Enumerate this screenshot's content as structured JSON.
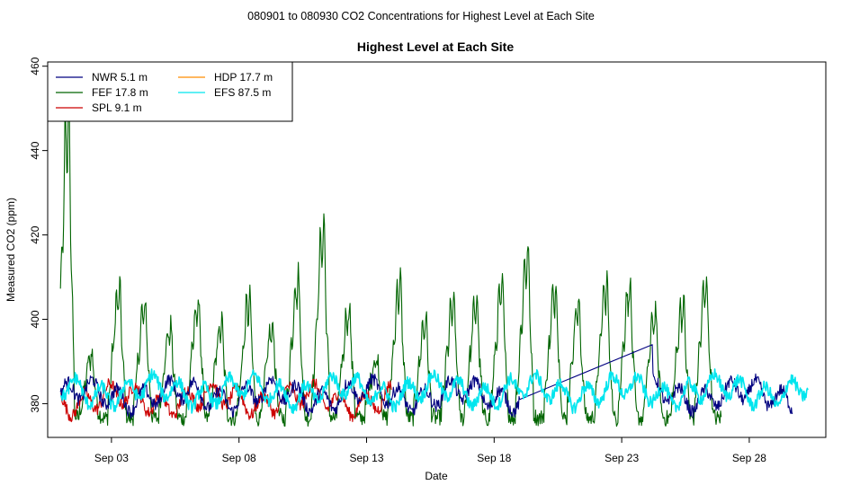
{
  "page_title": "080901  to  080930 CO2 Concentrations for Highest Level at Each Site",
  "chart_data": {
    "type": "line",
    "title": "Highest Level at Each Site",
    "xlabel": "Date",
    "ylabel": "Measured CO2 (ppm)",
    "xlim": [
      -0.5,
      30.0
    ],
    "ylim": [
      372,
      461
    ],
    "x_ticks": [
      {
        "value": 2,
        "label": "Sep 03"
      },
      {
        "value": 7,
        "label": "Sep 08"
      },
      {
        "value": 12,
        "label": "Sep 13"
      },
      {
        "value": 17,
        "label": "Sep 18"
      },
      {
        "value": 22,
        "label": "Sep 23"
      },
      {
        "value": 27,
        "label": "Sep 28"
      }
    ],
    "y_ticks": [
      380,
      400,
      420,
      440,
      460
    ],
    "x_units": "days since Sep 01",
    "series": [
      {
        "name": "NWR   5.1 m",
        "color": "#000080",
        "x_range": [
          0.0,
          28.7
        ],
        "peak_times": [],
        "peak_values": [],
        "interpolated_gap": [
          18.0,
          23.2,
          381,
          394
        ],
        "baseline": 382
      },
      {
        "name": "FEF   17.8 m",
        "color": "#006400",
        "x_range": [
          0.0,
          25.9
        ],
        "peak_times": [
          0.3,
          1.2,
          2.3,
          3.3,
          4.3,
          5.4,
          6.3,
          7.4,
          8.3,
          9.3,
          10.3,
          11.3,
          12.4,
          13.3,
          14.3,
          15.4,
          16.3,
          17.3,
          18.3,
          19.4,
          20.3,
          21.4,
          22.3,
          23.3,
          24.4,
          25.3
        ],
        "peak_values": [
          458,
          394,
          411,
          407,
          401,
          408,
          402,
          409,
          401,
          414,
          428,
          406,
          393,
          413,
          403,
          408,
          408,
          412,
          421,
          412,
          407,
          413,
          412,
          405,
          408,
          413
        ],
        "baseline": 380
      },
      {
        "name": "SPL   9.1 m",
        "color": "#cc0000",
        "x_range": [
          0.0,
          13.0
        ],
        "peak_times": [],
        "peak_values": [],
        "baseline": 381
      },
      {
        "name": "HDP   17.7 m",
        "color": "#ff8c00",
        "x_range": [],
        "peak_times": [],
        "peak_values": [],
        "baseline": null
      },
      {
        "name": "EFS   87.5 m",
        "color": "#00e5ee",
        "x_range": [
          0.0,
          29.3
        ],
        "peak_times": [],
        "peak_values": [],
        "baseline": 383
      }
    ]
  }
}
